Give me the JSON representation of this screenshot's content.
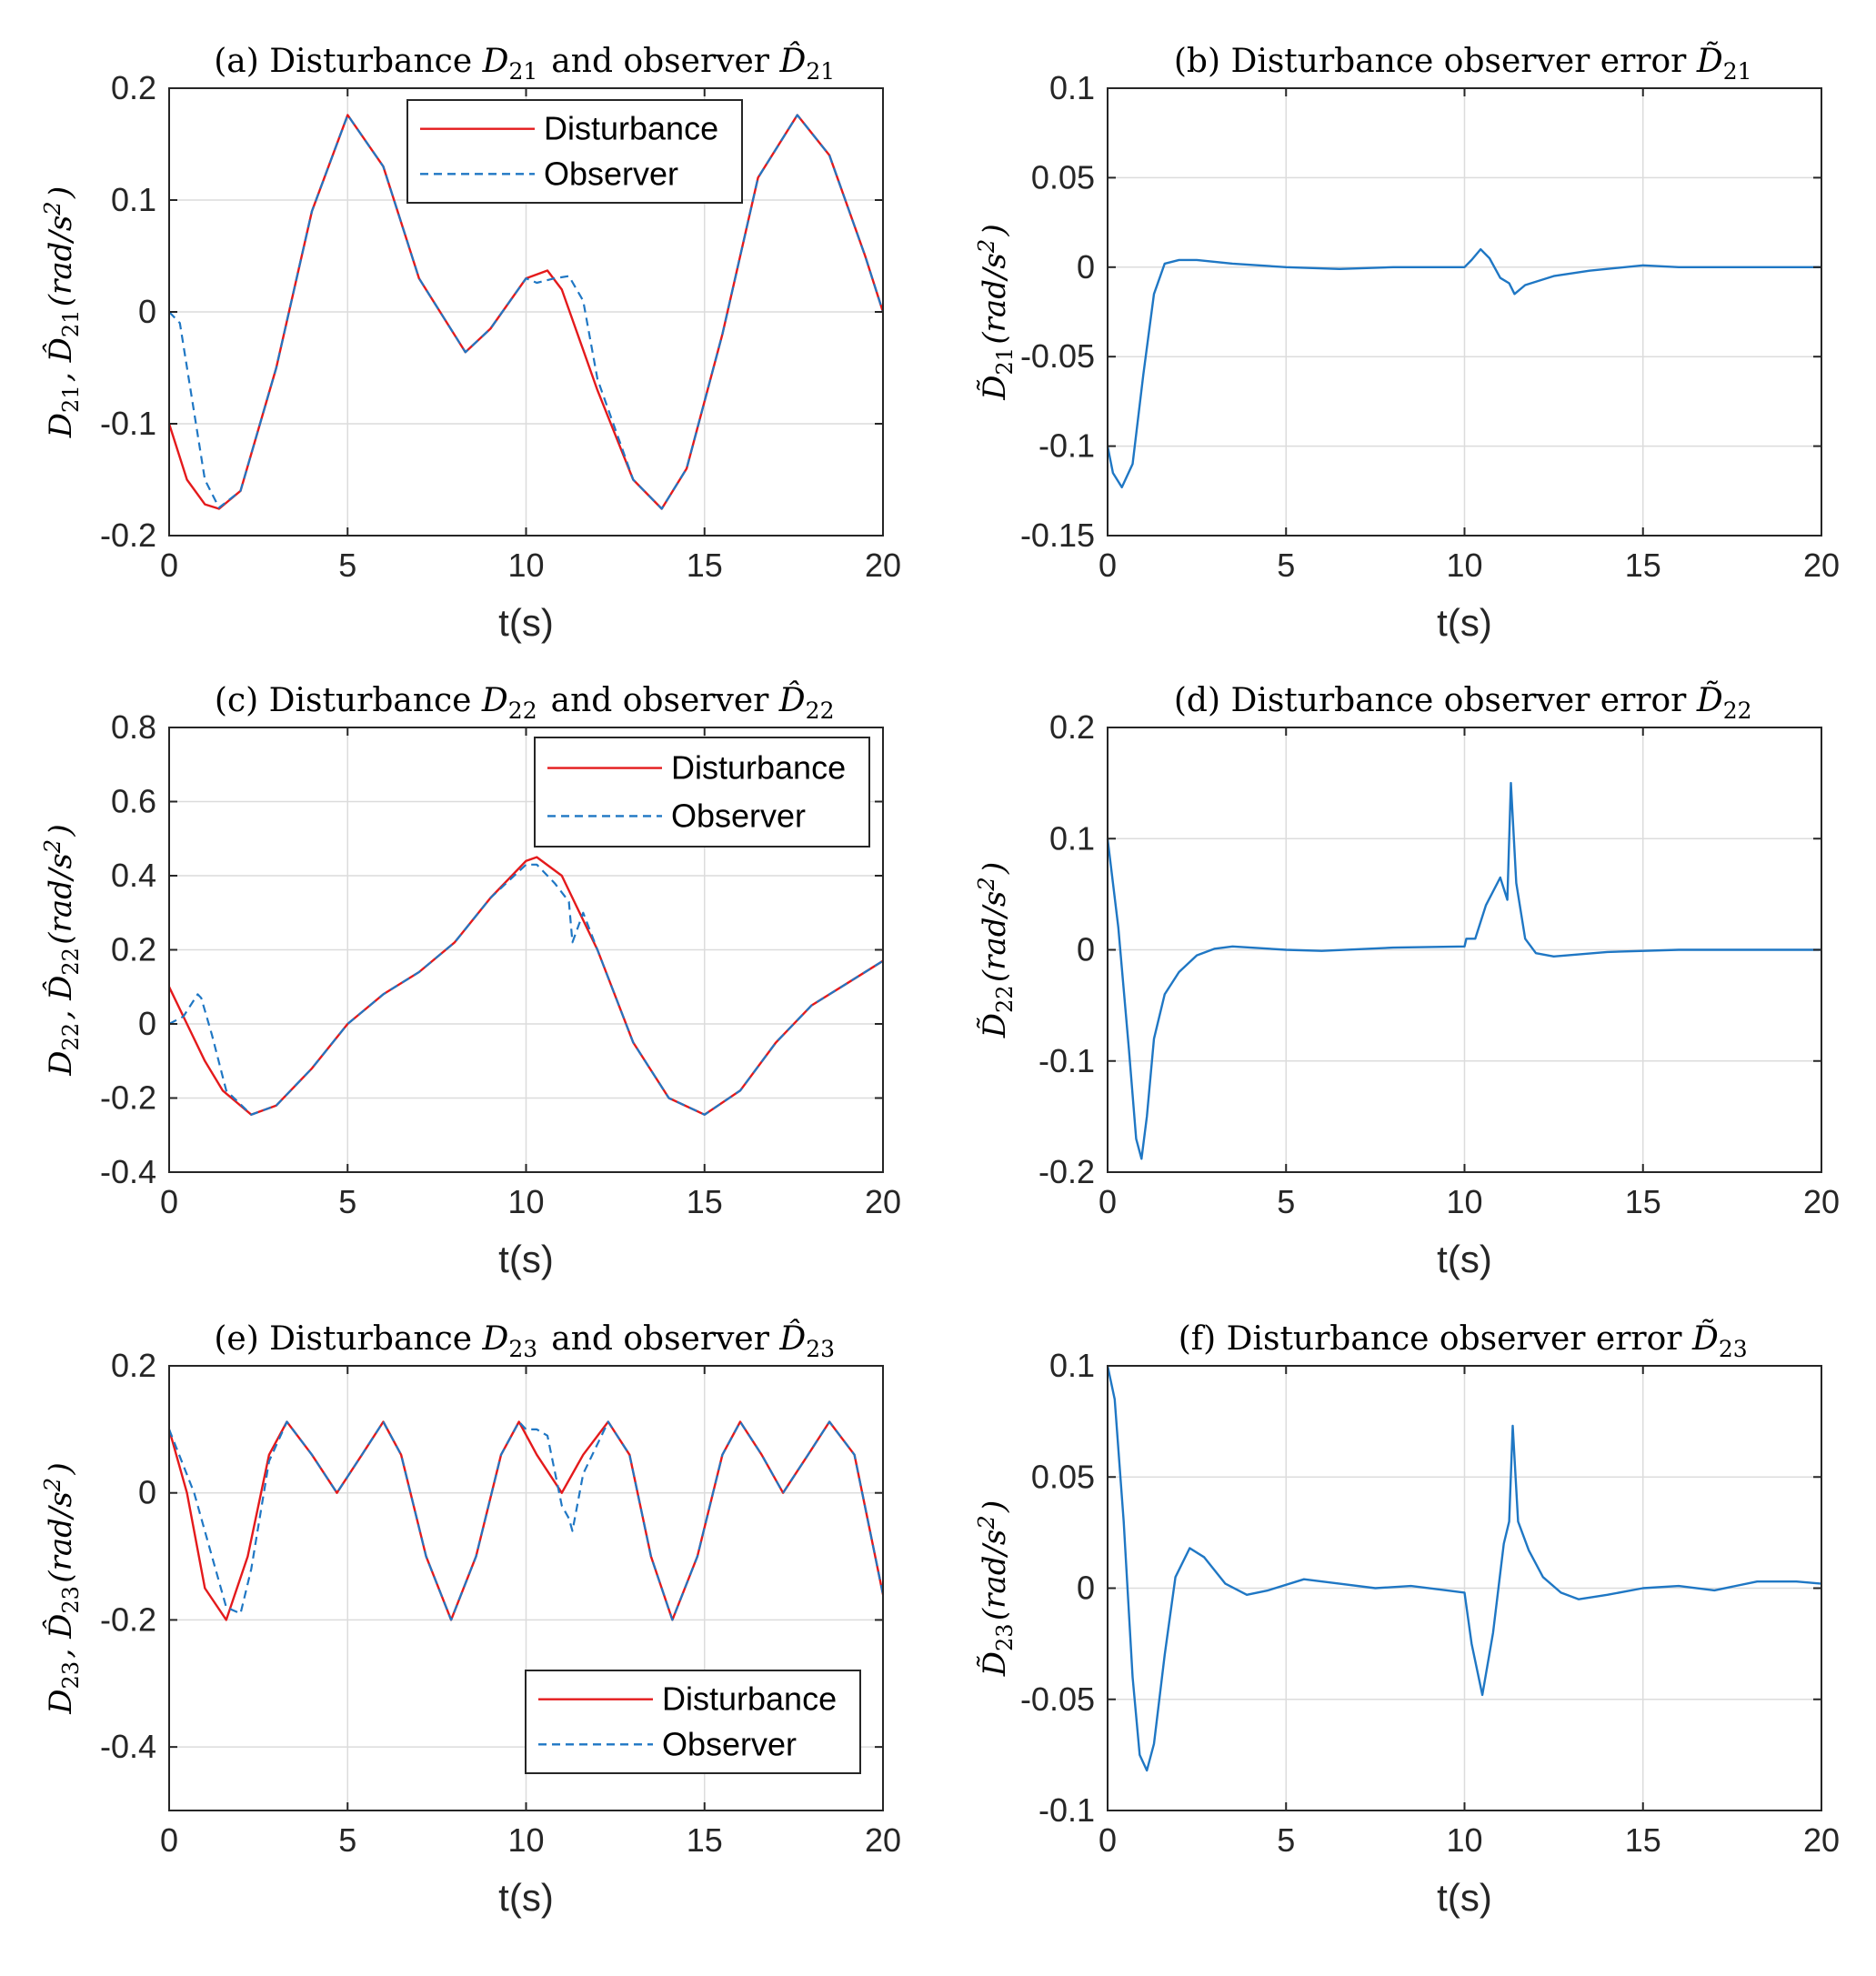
{
  "figure": {
    "colors": {
      "disturbance": "#e41a1c",
      "observer": "#1f77c4",
      "grid": "#dcdcdc",
      "axis": "#262626"
    },
    "icon": "none"
  },
  "chart_data": [
    {
      "id": "a",
      "type": "line",
      "title": "(a) Disturbance D21 and observer D̂21",
      "xlabel": "t(s)",
      "ylabel": "D21, D̂21(rad/s²)",
      "xlim": [
        0,
        20
      ],
      "ylim": [
        -0.2,
        0.2
      ],
      "xticks": [
        "0",
        "5",
        "10",
        "15",
        "20"
      ],
      "yticks": [
        "-0.2",
        "-0.1",
        "0",
        "0.1",
        "0.2"
      ],
      "grid": true,
      "legend_position": "top-center",
      "series": [
        {
          "name": "Disturbance",
          "style": "solid",
          "color": "#e41a1c",
          "x": [
            0,
            0.5,
            1,
            1.4,
            2,
            3,
            4,
            5,
            6,
            7,
            8.3,
            9,
            10,
            10.6,
            11,
            12,
            13,
            13.8,
            14.5,
            15.5,
            16.5,
            17.6,
            18.5,
            19.5,
            20
          ],
          "y": [
            -0.1,
            -0.15,
            -0.172,
            -0.176,
            -0.16,
            -0.05,
            0.09,
            0.176,
            0.13,
            0.03,
            -0.036,
            -0.015,
            0.03,
            0.037,
            0.02,
            -0.07,
            -0.15,
            -0.176,
            -0.14,
            -0.02,
            0.12,
            0.176,
            0.14,
            0.05,
            0
          ]
        },
        {
          "name": "Observer",
          "style": "dashed",
          "color": "#1f77c4",
          "x": [
            0,
            0.3,
            0.6,
            1,
            1.4,
            2,
            3,
            4,
            5,
            6,
            7,
            8.3,
            9,
            10,
            10.3,
            10.8,
            11.2,
            11.6,
            12,
            13,
            13.8,
            14.5,
            15.5,
            16.5,
            17.6,
            18.5,
            19.5,
            20
          ],
          "y": [
            0,
            -0.01,
            -0.07,
            -0.15,
            -0.175,
            -0.16,
            -0.05,
            0.09,
            0.176,
            0.13,
            0.03,
            -0.036,
            -0.015,
            0.03,
            0.026,
            0.03,
            0.032,
            0.01,
            -0.06,
            -0.15,
            -0.176,
            -0.14,
            -0.02,
            0.12,
            0.176,
            0.14,
            0.05,
            0
          ]
        }
      ]
    },
    {
      "id": "b",
      "type": "line",
      "title": "(b) Disturbance observer error D̃21",
      "xlabel": "t(s)",
      "ylabel": "D̃21(rad/s²)",
      "xlim": [
        0,
        20
      ],
      "ylim": [
        -0.15,
        0.1
      ],
      "xticks": [
        "0",
        "5",
        "10",
        "15",
        "20"
      ],
      "yticks": [
        "-0.15",
        "-0.1",
        "-0.05",
        "0",
        "0.05",
        "0.1"
      ],
      "grid": true,
      "series": [
        {
          "name": "Error",
          "style": "solid",
          "color": "#1f77c4",
          "x": [
            0,
            0.15,
            0.4,
            0.7,
            1.0,
            1.3,
            1.6,
            2.0,
            2.5,
            3.5,
            5,
            6.5,
            8,
            10,
            10.2,
            10.45,
            10.7,
            11.0,
            11.25,
            11.4,
            11.7,
            12.5,
            13.5,
            15,
            16,
            18,
            20
          ],
          "y": [
            -0.1,
            -0.115,
            -0.123,
            -0.11,
            -0.06,
            -0.015,
            0.002,
            0.004,
            0.004,
            0.002,
            0,
            -0.001,
            0,
            0,
            0.004,
            0.01,
            0.005,
            -0.006,
            -0.009,
            -0.015,
            -0.01,
            -0.005,
            -0.002,
            0.001,
            0,
            0,
            0
          ]
        }
      ]
    },
    {
      "id": "c",
      "type": "line",
      "title": "(c) Disturbance D22 and observer D̂22",
      "xlabel": "t(s)",
      "ylabel": "D22, D̂22(rad/s²)",
      "xlim": [
        0,
        20
      ],
      "ylim": [
        -0.4,
        0.8
      ],
      "xticks": [
        "0",
        "5",
        "10",
        "15",
        "20"
      ],
      "yticks": [
        "-0.4",
        "-0.2",
        "0",
        "0.2",
        "0.4",
        "0.6",
        "0.8"
      ],
      "grid": true,
      "legend_position": "top-right",
      "series": [
        {
          "name": "Disturbance",
          "style": "solid",
          "color": "#e41a1c",
          "x": [
            0,
            0.5,
            1,
            1.5,
            2.3,
            3,
            4,
            5,
            6,
            7,
            8,
            9,
            10,
            10.3,
            11,
            12,
            13,
            14,
            15,
            16,
            17,
            18,
            19,
            20
          ],
          "y": [
            0.1,
            0,
            -0.1,
            -0.18,
            -0.245,
            -0.22,
            -0.12,
            0,
            0.08,
            0.14,
            0.22,
            0.34,
            0.44,
            0.45,
            0.4,
            0.2,
            -0.05,
            -0.2,
            -0.245,
            -0.18,
            -0.05,
            0.05,
            0.11,
            0.17
          ]
        },
        {
          "name": "Observer",
          "style": "dashed",
          "color": "#1f77c4",
          "x": [
            0,
            0.4,
            0.8,
            0.9,
            1.2,
            1.6,
            2.3,
            3,
            4,
            5,
            6,
            7,
            8,
            9,
            10,
            10.3,
            10.8,
            11.2,
            11.3,
            11.6,
            12,
            13,
            14,
            15,
            16,
            17,
            18,
            19,
            20
          ],
          "y": [
            0,
            0.02,
            0.08,
            0.07,
            -0.03,
            -0.18,
            -0.245,
            -0.22,
            -0.12,
            0,
            0.08,
            0.14,
            0.22,
            0.34,
            0.43,
            0.43,
            0.38,
            0.33,
            0.22,
            0.3,
            0.2,
            -0.05,
            -0.2,
            -0.245,
            -0.18,
            -0.05,
            0.05,
            0.11,
            0.17
          ]
        }
      ]
    },
    {
      "id": "d",
      "type": "line",
      "title": "(d) Disturbance observer error D̃22",
      "xlabel": "t(s)",
      "ylabel": "D̃22(rad/s²)",
      "xlim": [
        0,
        20
      ],
      "ylim": [
        -0.2,
        0.2
      ],
      "xticks": [
        "0",
        "5",
        "10",
        "15",
        "20"
      ],
      "yticks": [
        "-0.2",
        "-0.1",
        "0",
        "0.1",
        "0.2"
      ],
      "grid": true,
      "series": [
        {
          "name": "Error",
          "style": "solid",
          "color": "#1f77c4",
          "x": [
            0,
            0.3,
            0.6,
            0.8,
            0.95,
            1.1,
            1.3,
            1.6,
            2.0,
            2.5,
            3,
            3.5,
            5,
            6,
            8,
            10,
            10.05,
            10.3,
            10.6,
            11.0,
            11.2,
            11.3,
            11.45,
            11.7,
            12,
            12.5,
            14,
            16,
            20
          ],
          "y": [
            0.1,
            0.02,
            -0.09,
            -0.17,
            -0.188,
            -0.15,
            -0.08,
            -0.04,
            -0.02,
            -0.005,
            0.001,
            0.003,
            0,
            -0.001,
            0.002,
            0.003,
            0.01,
            0.01,
            0.04,
            0.065,
            0.045,
            0.15,
            0.06,
            0.01,
            -0.003,
            -0.006,
            -0.002,
            0,
            0
          ]
        }
      ]
    },
    {
      "id": "e",
      "type": "line",
      "title": "(e) Disturbance D23 and observer D̂23",
      "xlabel": "t(s)",
      "ylabel": "D23, D̂23(rad/s²)",
      "xlim": [
        0,
        20
      ],
      "ylim": [
        -0.5,
        0.2
      ],
      "xticks": [
        "0",
        "5",
        "10",
        "15",
        "20"
      ],
      "yticks": [
        "-0.4",
        "-0.2",
        "0",
        "0.2"
      ],
      "grid": true,
      "legend_position": "bottom-right",
      "series": [
        {
          "name": "Disturbance",
          "style": "solid",
          "color": "#e41a1c",
          "x": [
            0,
            0.5,
            1.0,
            1.6,
            2.2,
            2.8,
            3.3,
            4.0,
            4.7,
            5.4,
            6.0,
            6.5,
            7.2,
            7.9,
            8.6,
            9.3,
            9.8,
            10.3,
            11.0,
            11.6,
            12.3,
            12.9,
            13.5,
            14.1,
            14.8,
            15.5,
            16.0,
            16.6,
            17.2,
            17.9,
            18.5,
            19.2,
            20
          ],
          "y": [
            0.1,
            0,
            -0.15,
            -0.2,
            -0.1,
            0.06,
            0.112,
            0.06,
            0,
            0.06,
            0.112,
            0.06,
            -0.1,
            -0.2,
            -0.1,
            0.06,
            0.112,
            0.06,
            0,
            0.06,
            0.112,
            0.06,
            -0.1,
            -0.2,
            -0.1,
            0.06,
            0.112,
            0.06,
            0,
            0.06,
            0.112,
            0.06,
            -0.16
          ]
        },
        {
          "name": "Observer",
          "style": "dashed",
          "color": "#1f77c4",
          "x": [
            0,
            0.7,
            1.2,
            1.6,
            2.0,
            2.3,
            2.8,
            3.3,
            4.0,
            4.7,
            5.4,
            6.0,
            6.5,
            7.2,
            7.9,
            8.6,
            9.3,
            9.8,
            10.0,
            10.3,
            10.6,
            11.0,
            11.2,
            11.3,
            11.6,
            12.3,
            12.9,
            13.5,
            14.1,
            14.8,
            15.5,
            16.0,
            16.6,
            17.2,
            17.9,
            18.5,
            19.2,
            20
          ],
          "y": [
            0.1,
            0,
            -0.1,
            -0.18,
            -0.19,
            -0.12,
            0.05,
            0.112,
            0.06,
            0,
            0.06,
            0.112,
            0.06,
            -0.1,
            -0.2,
            -0.1,
            0.06,
            0.112,
            0.1,
            0.1,
            0.09,
            -0.02,
            -0.04,
            -0.06,
            0.03,
            0.112,
            0.06,
            -0.1,
            -0.2,
            -0.1,
            0.06,
            0.112,
            0.06,
            0,
            0.06,
            0.112,
            0.06,
            -0.16
          ]
        }
      ]
    },
    {
      "id": "f",
      "type": "line",
      "title": "(f) Disturbance observer error D̃23",
      "xlabel": "t(s)",
      "ylabel": "D̃23(rad/s²)",
      "xlim": [
        0,
        20
      ],
      "ylim": [
        -0.1,
        0.1
      ],
      "xticks": [
        "0",
        "5",
        "10",
        "15",
        "20"
      ],
      "yticks": [
        "-0.1",
        "-0.05",
        "0",
        "0.05",
        "0.1"
      ],
      "grid": true,
      "series": [
        {
          "name": "Error",
          "style": "solid",
          "color": "#1f77c4",
          "x": [
            0,
            0.2,
            0.45,
            0.7,
            0.9,
            1.1,
            1.3,
            1.6,
            1.9,
            2.3,
            2.7,
            3.3,
            3.9,
            4.5,
            5.5,
            6.5,
            7.5,
            8.5,
            9.5,
            10,
            10.2,
            10.5,
            10.8,
            11.1,
            11.25,
            11.35,
            11.5,
            11.8,
            12.2,
            12.7,
            13.2,
            14,
            15,
            16,
            17,
            18.2,
            19.3,
            20
          ],
          "y": [
            0.1,
            0.085,
            0.03,
            -0.04,
            -0.075,
            -0.082,
            -0.07,
            -0.03,
            0.005,
            0.018,
            0.014,
            0.002,
            -0.003,
            -0.001,
            0.004,
            0.002,
            0,
            0.001,
            -0.001,
            -0.002,
            -0.025,
            -0.048,
            -0.02,
            0.02,
            0.03,
            0.073,
            0.03,
            0.017,
            0.005,
            -0.002,
            -0.005,
            -0.003,
            0,
            0.001,
            -0.001,
            0.003,
            0.003,
            0.002
          ]
        }
      ]
    }
  ]
}
